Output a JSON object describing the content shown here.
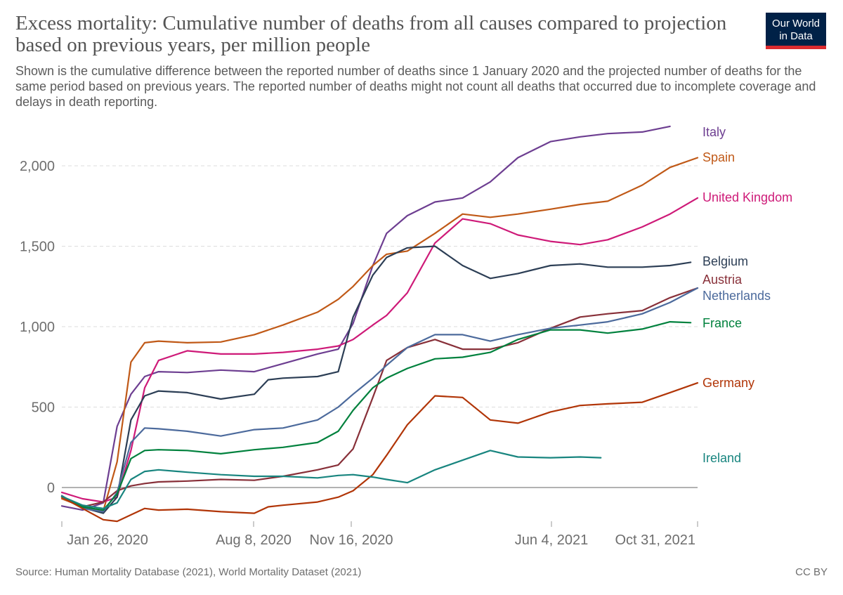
{
  "header": {
    "title": "Excess mortality: Cumulative number of deaths from all causes compared to projection based on previous years, per million people",
    "subtitle": "Shown is the cumulative difference between the reported number of deaths since 1 January 2020 and the projected number of deaths for the same period based on previous years. The reported number of deaths might not count all deaths that occurred due to incomplete coverage and delays in death reporting.",
    "logo_line1": "Our World",
    "logo_line2": "in Data"
  },
  "footer": {
    "source": "Source: Human Mortality Database (2021), World Mortality Dataset (2021)",
    "license": "CC BY"
  },
  "chart_data": {
    "type": "line",
    "x_ticks": [
      "Jan 26, 2020",
      "Aug 8, 2020",
      "Nov 16, 2020",
      "Jun 4, 2021",
      "Oct 31, 2021"
    ],
    "y_ticks": [
      0,
      500,
      1000,
      1500,
      2000
    ],
    "y_tick_labels": [
      "0",
      "500",
      "1,000",
      "1,500",
      "2,000"
    ],
    "xlim": [
      "2020-01-26",
      "2021-10-31"
    ],
    "ylim": [
      -200,
      2250
    ],
    "grid": "horizontal dashed",
    "legend": "labels at line ends (right)",
    "series": [
      {
        "name": "Italy",
        "color": "#6d3e91",
        "x": [
          "2020-01-26",
          "2020-02-16",
          "2020-03-08",
          "2020-03-22",
          "2020-04-05",
          "2020-04-19",
          "2020-05-03",
          "2020-06-01",
          "2020-07-05",
          "2020-08-08",
          "2020-09-06",
          "2020-10-11",
          "2020-11-01",
          "2020-11-16",
          "2020-12-06",
          "2020-12-20",
          "2021-01-10",
          "2021-02-07",
          "2021-03-07",
          "2021-04-04",
          "2021-05-02",
          "2021-06-04",
          "2021-07-04",
          "2021-08-01",
          "2021-09-05",
          "2021-10-03"
        ],
        "y": [
          -115,
          -140,
          -95,
          380,
          580,
          690,
          720,
          715,
          730,
          720,
          770,
          830,
          860,
          1020,
          1380,
          1580,
          1690,
          1775,
          1800,
          1900,
          2050,
          2150,
          2180,
          2200,
          2210,
          2245
        ]
      },
      {
        "name": "Spain",
        "color": "#c05917",
        "x": [
          "2020-01-26",
          "2020-02-16",
          "2020-03-08",
          "2020-03-22",
          "2020-04-05",
          "2020-04-19",
          "2020-05-03",
          "2020-06-01",
          "2020-07-05",
          "2020-08-08",
          "2020-09-06",
          "2020-10-11",
          "2020-11-01",
          "2020-11-16",
          "2020-12-06",
          "2020-12-20",
          "2021-01-10",
          "2021-02-07",
          "2021-03-07",
          "2021-04-04",
          "2021-05-02",
          "2021-06-04",
          "2021-07-04",
          "2021-08-01",
          "2021-09-05",
          "2021-10-03",
          "2021-10-31"
        ],
        "y": [
          -70,
          -120,
          -145,
          160,
          780,
          900,
          910,
          900,
          905,
          950,
          1010,
          1090,
          1170,
          1250,
          1380,
          1450,
          1470,
          1580,
          1700,
          1680,
          1700,
          1730,
          1760,
          1780,
          1880,
          1990,
          2050
        ]
      },
      {
        "name": "United Kingdom",
        "color": "#ce1a78",
        "x": [
          "2020-01-26",
          "2020-02-16",
          "2020-03-08",
          "2020-03-22",
          "2020-04-05",
          "2020-04-19",
          "2020-05-03",
          "2020-06-01",
          "2020-07-05",
          "2020-08-08",
          "2020-09-06",
          "2020-10-11",
          "2020-11-01",
          "2020-11-16",
          "2020-12-06",
          "2020-12-20",
          "2021-01-10",
          "2021-02-07",
          "2021-03-07",
          "2021-04-04",
          "2021-05-02",
          "2021-06-04",
          "2021-07-04",
          "2021-08-01",
          "2021-09-05",
          "2021-10-03",
          "2021-10-31"
        ],
        "y": [
          -30,
          -70,
          -90,
          -60,
          230,
          620,
          790,
          850,
          830,
          830,
          840,
          860,
          880,
          920,
          1010,
          1070,
          1210,
          1520,
          1670,
          1640,
          1570,
          1530,
          1510,
          1540,
          1620,
          1700,
          1800
        ]
      },
      {
        "name": "Belgium",
        "color": "#2c3e55",
        "x": [
          "2020-01-26",
          "2020-02-16",
          "2020-03-08",
          "2020-03-22",
          "2020-04-05",
          "2020-04-19",
          "2020-05-03",
          "2020-06-01",
          "2020-07-05",
          "2020-08-08",
          "2020-08-22",
          "2020-09-06",
          "2020-10-11",
          "2020-11-01",
          "2020-11-16",
          "2020-12-06",
          "2020-12-20",
          "2021-01-10",
          "2021-02-07",
          "2021-03-07",
          "2021-04-04",
          "2021-05-02",
          "2021-06-04",
          "2021-07-04",
          "2021-08-01",
          "2021-09-05",
          "2021-10-03",
          "2021-10-24"
        ],
        "y": [
          -60,
          -125,
          -160,
          -60,
          420,
          570,
          600,
          590,
          550,
          580,
          670,
          680,
          690,
          720,
          1060,
          1320,
          1430,
          1490,
          1500,
          1380,
          1300,
          1330,
          1380,
          1390,
          1370,
          1370,
          1380,
          1400
        ]
      },
      {
        "name": "Austria",
        "color": "#883039",
        "x": [
          "2020-01-26",
          "2020-02-16",
          "2020-03-08",
          "2020-03-22",
          "2020-04-05",
          "2020-04-19",
          "2020-05-03",
          "2020-06-01",
          "2020-07-05",
          "2020-08-08",
          "2020-09-06",
          "2020-10-11",
          "2020-11-01",
          "2020-11-16",
          "2020-12-06",
          "2020-12-20",
          "2021-01-10",
          "2021-02-07",
          "2021-03-07",
          "2021-04-04",
          "2021-05-02",
          "2021-06-04",
          "2021-07-04",
          "2021-08-01",
          "2021-09-05",
          "2021-10-03",
          "2021-10-31"
        ],
        "y": [
          -60,
          -120,
          -90,
          -20,
          10,
          25,
          35,
          40,
          50,
          45,
          70,
          110,
          140,
          240,
          560,
          790,
          870,
          920,
          860,
          860,
          900,
          990,
          1060,
          1080,
          1100,
          1180,
          1240
        ]
      },
      {
        "name": "Netherlands",
        "color": "#4c6a9c",
        "x": [
          "2020-01-26",
          "2020-02-16",
          "2020-03-08",
          "2020-03-22",
          "2020-04-05",
          "2020-04-19",
          "2020-05-03",
          "2020-06-01",
          "2020-07-05",
          "2020-08-08",
          "2020-09-06",
          "2020-10-11",
          "2020-11-01",
          "2020-11-16",
          "2020-12-06",
          "2020-12-20",
          "2021-01-10",
          "2021-02-07",
          "2021-03-07",
          "2021-04-04",
          "2021-05-02",
          "2021-06-04",
          "2021-07-04",
          "2021-08-01",
          "2021-09-05",
          "2021-10-03",
          "2021-10-31"
        ],
        "y": [
          -50,
          -130,
          -150,
          -30,
          280,
          370,
          365,
          350,
          320,
          360,
          370,
          420,
          500,
          580,
          680,
          760,
          870,
          950,
          950,
          910,
          950,
          990,
          1010,
          1030,
          1080,
          1150,
          1240
        ]
      },
      {
        "name": "France",
        "color": "#00813d",
        "x": [
          "2020-01-26",
          "2020-02-16",
          "2020-03-08",
          "2020-03-22",
          "2020-04-05",
          "2020-04-19",
          "2020-05-03",
          "2020-06-01",
          "2020-07-05",
          "2020-08-08",
          "2020-09-06",
          "2020-10-11",
          "2020-11-01",
          "2020-11-16",
          "2020-12-06",
          "2020-12-20",
          "2021-01-10",
          "2021-02-07",
          "2021-03-07",
          "2021-04-04",
          "2021-05-02",
          "2021-06-04",
          "2021-07-04",
          "2021-08-01",
          "2021-09-05",
          "2021-10-03",
          "2021-10-24"
        ],
        "y": [
          -55,
          -120,
          -140,
          -40,
          180,
          230,
          235,
          230,
          210,
          235,
          250,
          280,
          350,
          480,
          620,
          680,
          740,
          800,
          810,
          840,
          920,
          980,
          980,
          960,
          985,
          1030,
          1025
        ]
      },
      {
        "name": "Germany",
        "color": "#b13507",
        "x": [
          "2020-01-26",
          "2020-02-16",
          "2020-03-08",
          "2020-03-22",
          "2020-04-05",
          "2020-04-19",
          "2020-05-03",
          "2020-06-01",
          "2020-07-05",
          "2020-08-08",
          "2020-08-22",
          "2020-09-06",
          "2020-10-11",
          "2020-11-01",
          "2020-11-16",
          "2020-12-06",
          "2020-12-20",
          "2021-01-10",
          "2021-02-07",
          "2021-03-07",
          "2021-04-04",
          "2021-05-02",
          "2021-06-04",
          "2021-07-04",
          "2021-08-01",
          "2021-09-05",
          "2021-10-03",
          "2021-10-31"
        ],
        "y": [
          -60,
          -130,
          -200,
          -210,
          -170,
          -130,
          -140,
          -135,
          -150,
          -160,
          -120,
          -110,
          -90,
          -60,
          -20,
          80,
          200,
          390,
          570,
          560,
          420,
          400,
          470,
          510,
          520,
          530,
          590,
          650
        ]
      },
      {
        "name": "Ireland",
        "color": "#18857f",
        "x": [
          "2020-01-26",
          "2020-02-16",
          "2020-03-08",
          "2020-03-22",
          "2020-04-05",
          "2020-04-19",
          "2020-05-03",
          "2020-06-01",
          "2020-07-05",
          "2020-08-08",
          "2020-09-06",
          "2020-10-11",
          "2020-11-01",
          "2020-11-16",
          "2020-12-06",
          "2020-12-20",
          "2021-01-10",
          "2021-02-07",
          "2021-03-07",
          "2021-04-04",
          "2021-05-02",
          "2021-06-04",
          "2021-07-04",
          "2021-07-25"
        ],
        "y": [
          -55,
          -110,
          -130,
          -95,
          50,
          100,
          110,
          95,
          80,
          70,
          70,
          60,
          75,
          80,
          65,
          50,
          30,
          110,
          170,
          230,
          190,
          185,
          190,
          185
        ]
      }
    ]
  }
}
